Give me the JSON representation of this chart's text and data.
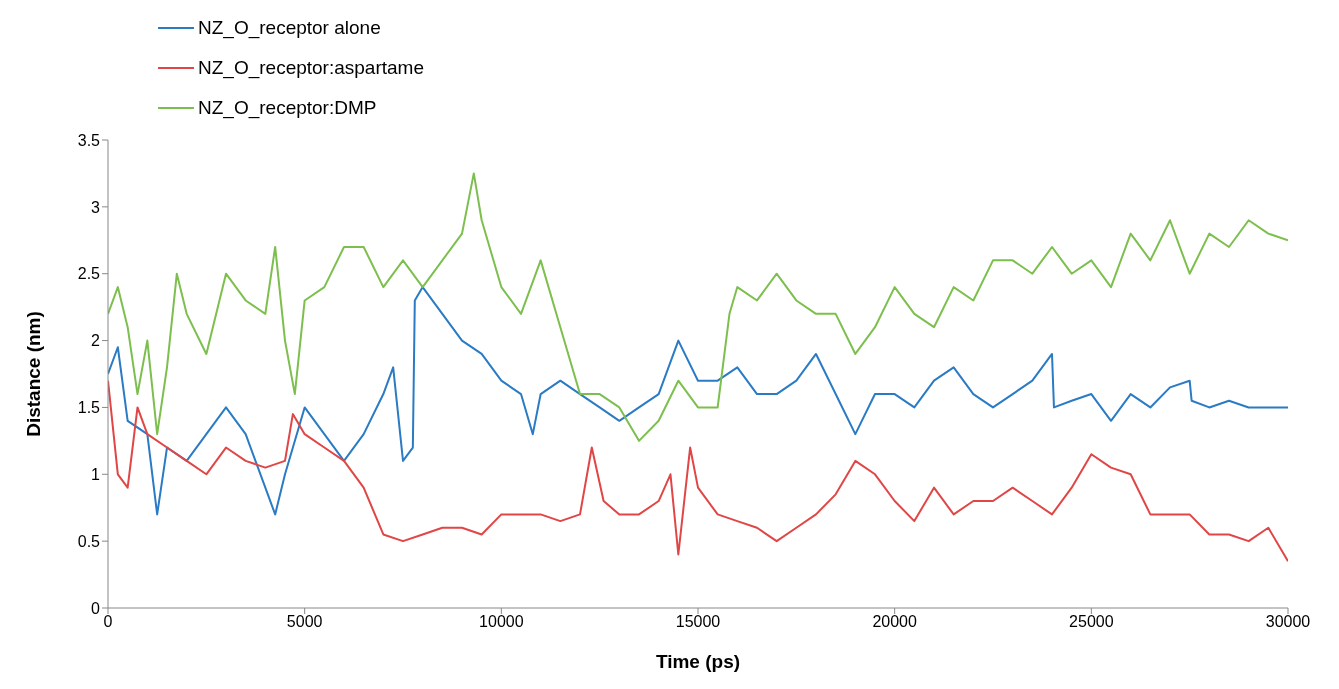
{
  "chart_data": {
    "type": "line",
    "xlabel": "Time (ps)",
    "ylabel": "Distance (nm)",
    "xlim": [
      0,
      30000
    ],
    "xticks": [
      0,
      5000,
      10000,
      15000,
      20000,
      25000,
      30000
    ],
    "ylim": [
      0,
      3.5
    ],
    "yticks": [
      0,
      0.5,
      1,
      1.5,
      2,
      2.5,
      3,
      3.5
    ],
    "grid": false,
    "legend": "top left",
    "marker": "none",
    "line_style": "solid",
    "series": [
      {
        "name": "NZ_O_receptor alone",
        "color": "#2a7bc4",
        "x": [
          0,
          250,
          500,
          1000,
          1250,
          1500,
          2000,
          2500,
          3000,
          3500,
          4000,
          4250,
          4500,
          5000,
          5500,
          6000,
          6500,
          7000,
          7250,
          7500,
          7750,
          7800,
          8000,
          8500,
          9000,
          9500,
          10000,
          10500,
          10800,
          11000,
          11500,
          12000,
          12500,
          13000,
          13500,
          14000,
          14500,
          15000,
          15500,
          16000,
          16500,
          17000,
          17500,
          18000,
          18500,
          19000,
          19500,
          20000,
          20500,
          21000,
          21500,
          22000,
          22500,
          23000,
          23500,
          24000,
          24050,
          24500,
          25000,
          25500,
          26000,
          26500,
          27000,
          27500,
          27550,
          28000,
          28500,
          29000,
          29500,
          30000
        ],
        "values": [
          1.75,
          1.95,
          1.4,
          1.3,
          0.7,
          1.2,
          1.1,
          1.3,
          1.5,
          1.3,
          0.9,
          0.7,
          1.0,
          1.5,
          1.3,
          1.1,
          1.3,
          1.6,
          1.8,
          1.1,
          1.2,
          2.3,
          2.4,
          2.2,
          2.0,
          1.9,
          1.7,
          1.6,
          1.3,
          1.6,
          1.7,
          1.6,
          1.5,
          1.4,
          1.5,
          1.6,
          2.0,
          1.7,
          1.7,
          1.8,
          1.6,
          1.6,
          1.7,
          1.9,
          1.6,
          1.3,
          1.6,
          1.6,
          1.5,
          1.7,
          1.8,
          1.6,
          1.5,
          1.6,
          1.7,
          1.9,
          1.5,
          1.55,
          1.6,
          1.4,
          1.6,
          1.5,
          1.65,
          1.7,
          1.55,
          1.5,
          1.55,
          1.5,
          1.5,
          1.5
        ]
      },
      {
        "name": "NZ_O_receptor:aspartame",
        "color": "#e04646",
        "x": [
          0,
          250,
          500,
          750,
          1000,
          1500,
          2000,
          2500,
          3000,
          3500,
          4000,
          4500,
          4700,
          5000,
          5500,
          6000,
          6500,
          7000,
          7500,
          8000,
          8500,
          9000,
          9500,
          10000,
          10500,
          11000,
          11500,
          12000,
          12300,
          12600,
          13000,
          13500,
          14000,
          14300,
          14500,
          14800,
          15000,
          15500,
          16000,
          16500,
          17000,
          17500,
          18000,
          18500,
          19000,
          19500,
          20000,
          20500,
          21000,
          21500,
          22000,
          22500,
          23000,
          23500,
          24000,
          24500,
          25000,
          25500,
          26000,
          26500,
          27000,
          27500,
          28000,
          28500,
          29000,
          29500,
          30000
        ],
        "values": [
          1.7,
          1.0,
          0.9,
          1.5,
          1.3,
          1.2,
          1.1,
          1.0,
          1.2,
          1.1,
          1.05,
          1.1,
          1.45,
          1.3,
          1.2,
          1.1,
          0.9,
          0.55,
          0.5,
          0.55,
          0.6,
          0.6,
          0.55,
          0.7,
          0.7,
          0.7,
          0.65,
          0.7,
          1.2,
          0.8,
          0.7,
          0.7,
          0.8,
          1.0,
          0.4,
          1.2,
          0.9,
          0.7,
          0.65,
          0.6,
          0.5,
          0.6,
          0.7,
          0.85,
          1.1,
          1.0,
          0.8,
          0.65,
          0.9,
          0.7,
          0.8,
          0.8,
          0.9,
          0.8,
          0.7,
          0.9,
          1.15,
          1.05,
          1.0,
          0.7,
          0.7,
          0.7,
          0.55,
          0.55,
          0.5,
          0.6,
          0.35
        ]
      },
      {
        "name": "NZ_O_receptor:DMP",
        "color": "#7dbf4e",
        "x": [
          0,
          250,
          500,
          750,
          1000,
          1250,
          1500,
          1750,
          2000,
          2500,
          3000,
          3500,
          4000,
          4250,
          4500,
          4750,
          5000,
          5500,
          6000,
          6500,
          7000,
          7500,
          8000,
          8500,
          9000,
          9300,
          9500,
          10000,
          10500,
          11000,
          11500,
          12000,
          12500,
          13000,
          13500,
          14000,
          14500,
          15000,
          15500,
          15800,
          16000,
          16500,
          17000,
          17500,
          18000,
          18500,
          19000,
          19500,
          20000,
          20500,
          21000,
          21500,
          22000,
          22500,
          23000,
          23500,
          24000,
          24500,
          25000,
          25500,
          26000,
          26500,
          27000,
          27500,
          28000,
          28500,
          29000,
          29500,
          30000
        ],
        "values": [
          2.2,
          2.4,
          2.1,
          1.6,
          2.0,
          1.3,
          1.8,
          2.5,
          2.2,
          1.9,
          2.5,
          2.3,
          2.2,
          2.7,
          2.0,
          1.6,
          2.3,
          2.4,
          2.7,
          2.7,
          2.4,
          2.6,
          2.4,
          2.6,
          2.8,
          3.25,
          2.9,
          2.4,
          2.2,
          2.6,
          2.1,
          1.6,
          1.6,
          1.5,
          1.25,
          1.4,
          1.7,
          1.5,
          1.5,
          2.2,
          2.4,
          2.3,
          2.5,
          2.3,
          2.2,
          2.2,
          1.9,
          2.1,
          2.4,
          2.2,
          2.1,
          2.4,
          2.3,
          2.6,
          2.6,
          2.5,
          2.7,
          2.5,
          2.6,
          2.4,
          2.8,
          2.6,
          2.9,
          2.5,
          2.8,
          2.7,
          2.9,
          2.8,
          2.75
        ]
      }
    ]
  }
}
